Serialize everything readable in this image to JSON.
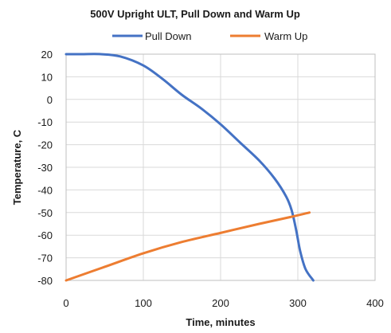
{
  "chart_data": {
    "type": "line",
    "title": "500V Upright ULT, Pull Down and Warm Up",
    "xlabel": "Time, minutes",
    "ylabel": "Temperature, C",
    "xlim": [
      0,
      400
    ],
    "ylim": [
      -80,
      20
    ],
    "x_ticks": [
      0,
      100,
      200,
      300,
      400
    ],
    "y_ticks": [
      20,
      10,
      0,
      -10,
      -20,
      -30,
      -40,
      -50,
      -60,
      -70,
      -80
    ],
    "grid": true,
    "legend_position": "top",
    "series": [
      {
        "name": "Pull Down",
        "color": "#4472C4",
        "points": [
          [
            0,
            20
          ],
          [
            20,
            20
          ],
          [
            45,
            20
          ],
          [
            70,
            19
          ],
          [
            100,
            15
          ],
          [
            125,
            9
          ],
          [
            150,
            2
          ],
          [
            175,
            -4
          ],
          [
            200,
            -11
          ],
          [
            225,
            -19
          ],
          [
            250,
            -27
          ],
          [
            270,
            -35
          ],
          [
            285,
            -43
          ],
          [
            292,
            -49
          ],
          [
            298,
            -58
          ],
          [
            303,
            -67
          ],
          [
            310,
            -75
          ],
          [
            320,
            -80
          ]
        ]
      },
      {
        "name": "Warm Up",
        "color": "#ED7D31",
        "points": [
          [
            0,
            -80
          ],
          [
            50,
            -74
          ],
          [
            100,
            -68
          ],
          [
            150,
            -63
          ],
          [
            200,
            -59
          ],
          [
            250,
            -55
          ],
          [
            290,
            -52
          ],
          [
            315,
            -50
          ]
        ]
      }
    ]
  }
}
